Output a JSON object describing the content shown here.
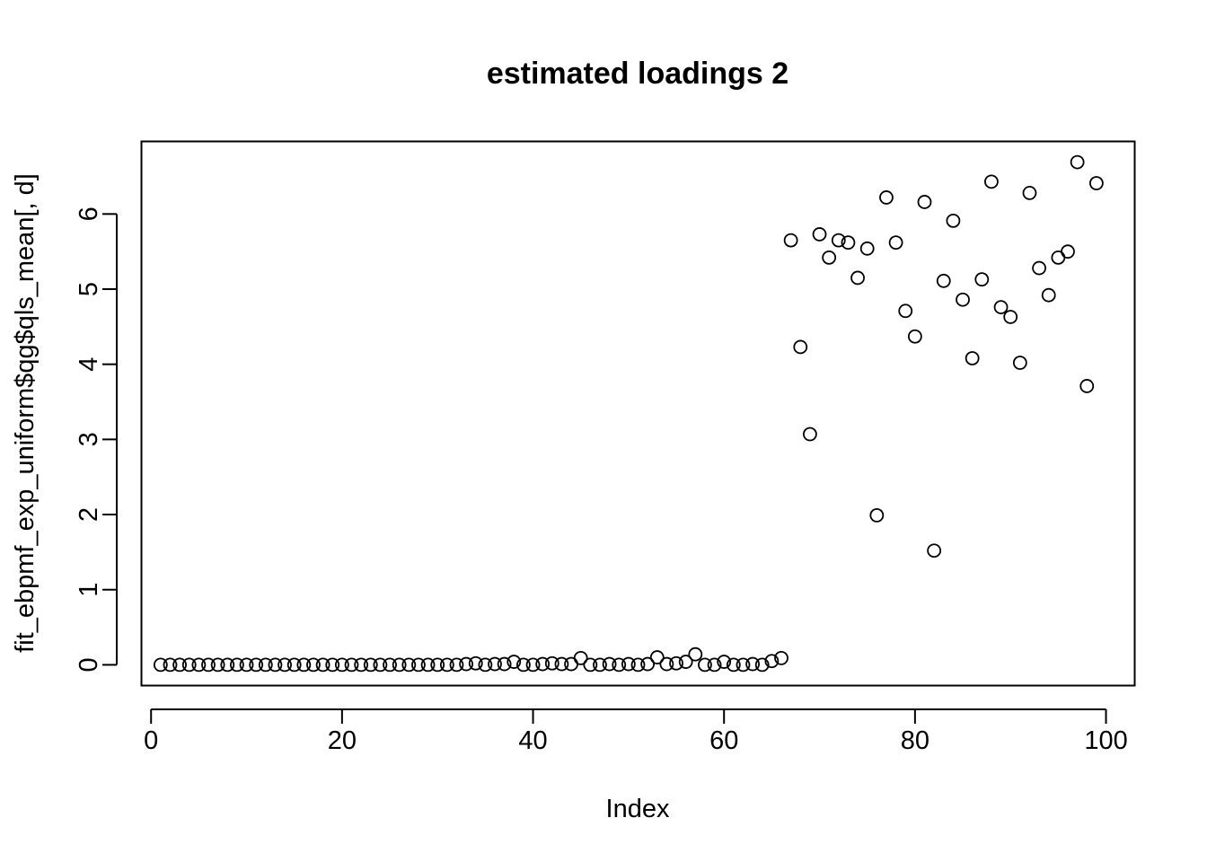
{
  "chart_data": {
    "type": "scatter",
    "title": "estimated loadings 2",
    "xlabel": "Index",
    "ylabel": "fit_ebpmf_exp_uniform$qg$qls_mean[, d]",
    "xlim": [
      -0.96,
      102.96
    ],
    "ylim": [
      -0.27,
      6.96
    ],
    "xticks": [
      "0",
      "20",
      "40",
      "60",
      "80",
      "100"
    ],
    "yticks": [
      "0",
      "1",
      "2",
      "3",
      "4",
      "5",
      "6"
    ],
    "grid": false,
    "legend": "none",
    "marker": "open-circle",
    "color": "#000000",
    "x": [
      1,
      2,
      3,
      4,
      5,
      6,
      7,
      8,
      9,
      10,
      11,
      12,
      13,
      14,
      15,
      16,
      17,
      18,
      19,
      20,
      21,
      22,
      23,
      24,
      25,
      26,
      27,
      28,
      29,
      30,
      31,
      32,
      33,
      34,
      35,
      36,
      37,
      38,
      39,
      40,
      41,
      42,
      43,
      44,
      45,
      46,
      47,
      48,
      49,
      50,
      51,
      52,
      53,
      54,
      55,
      56,
      57,
      58,
      59,
      60,
      61,
      62,
      63,
      64,
      65,
      66,
      67,
      68,
      69,
      70,
      71,
      72,
      73,
      74,
      75,
      76,
      77,
      78,
      79,
      80,
      81,
      82,
      83,
      84,
      85,
      86,
      87,
      88,
      89,
      90,
      91,
      92,
      93,
      94,
      95,
      96,
      97,
      98,
      99
    ],
    "y": [
      0,
      0,
      0,
      0,
      0,
      0,
      0,
      0,
      0,
      0,
      0,
      0,
      0,
      0,
      0,
      0,
      0,
      0,
      0,
      0,
      0,
      0,
      0,
      0,
      0,
      0,
      0,
      0,
      0,
      0,
      0,
      0,
      0.01,
      0.02,
      0,
      0.01,
      0.01,
      0.04,
      0,
      0,
      0.01,
      0.02,
      0.01,
      0.01,
      0.09,
      0,
      0,
      0.01,
      0,
      0.01,
      0,
      0.01,
      0.1,
      0.01,
      0.02,
      0.04,
      0.14,
      0,
      0,
      0.04,
      0,
      0,
      0.01,
      0,
      0.05,
      0.09,
      5.65,
      4.23,
      3.07,
      5.73,
      5.42,
      5.65,
      5.62,
      5.15,
      5.54,
      1.99,
      6.22,
      5.62,
      4.71,
      4.37,
      6.16,
      1.52,
      5.11,
      5.91,
      4.86,
      4.08,
      5.13,
      6.43,
      4.76,
      4.63,
      4.02,
      6.28,
      5.28,
      4.92,
      5.42,
      5.5,
      6.69,
      3.71,
      6.41
    ]
  }
}
